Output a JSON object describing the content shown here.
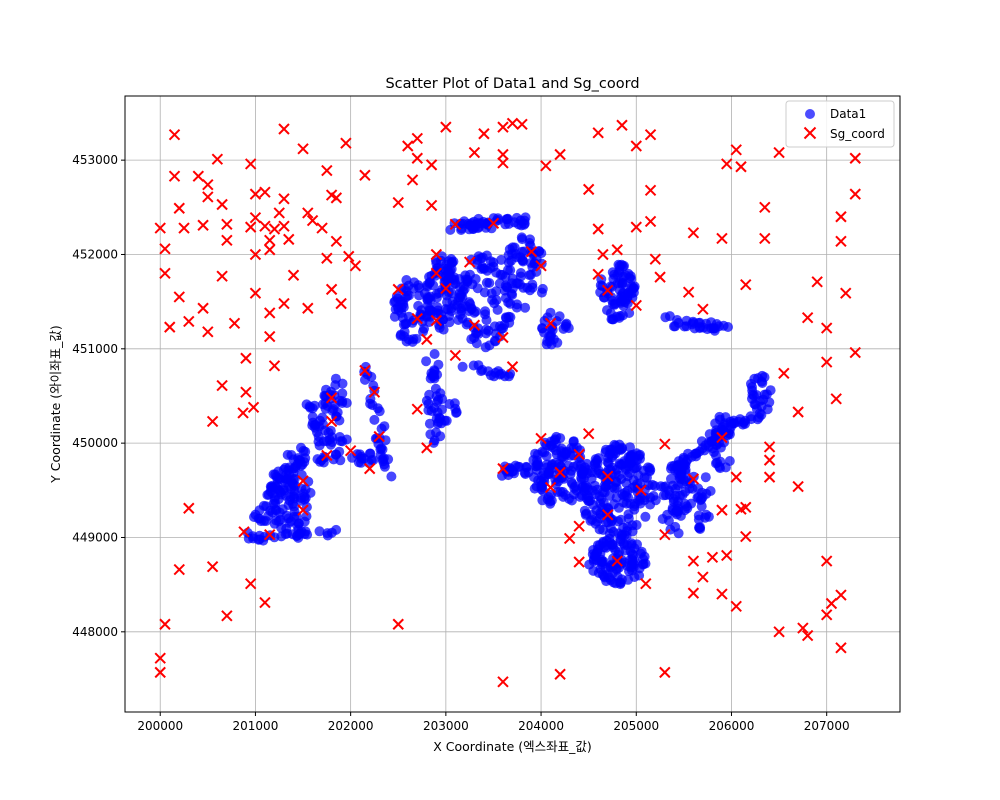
{
  "chart_data": {
    "type": "scatter",
    "title": "Scatter Plot of Data1 and Sg_coord",
    "xlabel": "X Coordinate (엑스좌표_값)",
    "ylabel": "Y Coordinate (와이좌표_값)",
    "xlim": [
      199630,
      207770
    ],
    "ylim": [
      447150,
      453680
    ],
    "xticks": [
      200000,
      201000,
      202000,
      203000,
      204000,
      205000,
      206000,
      207000
    ],
    "yticks": [
      448000,
      449000,
      450000,
      451000,
      452000,
      453000
    ],
    "grid": true,
    "legend_position": "top-right",
    "colors": {
      "data1": "#0000ff",
      "sg": "#ff0000",
      "grid": "#b0b0b0"
    },
    "legend": [
      "Data1",
      "Sg_coord"
    ],
    "series": [
      {
        "name": "Data1",
        "marker": "circle",
        "clusters": [
          {
            "shape": "line",
            "from": [
              200950,
              449000
            ],
            "to": [
              201850,
              449050
            ],
            "spread": 40,
            "n": 25
          },
          {
            "shape": "line",
            "from": [
              200950,
              449000
            ],
            "to": [
              201500,
              449900
            ],
            "spread": 80,
            "n": 40
          },
          {
            "shape": "blob",
            "cx": 201350,
            "cy": 449400,
            "rx": 250,
            "ry": 350,
            "n": 80
          },
          {
            "shape": "line",
            "from": [
              201350,
              449850
            ],
            "to": [
              202300,
              449850
            ],
            "spread": 60,
            "n": 30
          },
          {
            "shape": "line",
            "from": [
              201550,
              450500
            ],
            "to": [
              201750,
              449850
            ],
            "spread": 50,
            "n": 20
          },
          {
            "shape": "blob",
            "cx": 201850,
            "cy": 450300,
            "rx": 150,
            "ry": 400,
            "n": 40
          },
          {
            "shape": "line",
            "from": [
              202150,
              450800
            ],
            "to": [
              202400,
              449700
            ],
            "spread": 60,
            "n": 30
          },
          {
            "shape": "blob",
            "cx": 202650,
            "cy": 451400,
            "rx": 200,
            "ry": 350,
            "n": 60
          },
          {
            "shape": "blob",
            "cx": 203000,
            "cy": 451600,
            "rx": 200,
            "ry": 400,
            "n": 90
          },
          {
            "shape": "line",
            "from": [
              202850,
              451000
            ],
            "to": [
              202900,
              450000
            ],
            "spread": 80,
            "n": 30
          },
          {
            "shape": "blob",
            "cx": 203000,
            "cy": 450350,
            "rx": 150,
            "ry": 150,
            "n": 15
          },
          {
            "shape": "line",
            "from": [
              203050,
              452300
            ],
            "to": [
              203800,
              452350
            ],
            "spread": 60,
            "n": 50
          },
          {
            "shape": "blob",
            "cx": 203400,
            "cy": 451500,
            "rx": 300,
            "ry": 500,
            "n": 90
          },
          {
            "shape": "blob",
            "cx": 203800,
            "cy": 451800,
            "rx": 250,
            "ry": 400,
            "n": 60
          },
          {
            "shape": "blob",
            "cx": 204150,
            "cy": 451200,
            "rx": 150,
            "ry": 200,
            "n": 25
          },
          {
            "shape": "line",
            "from": [
              203200,
              450800
            ],
            "to": [
              203700,
              450700
            ],
            "spread": 50,
            "n": 15
          },
          {
            "shape": "blob",
            "cx": 204800,
            "cy": 451600,
            "rx": 200,
            "ry": 300,
            "n": 70
          },
          {
            "shape": "line",
            "from": [
              205300,
              451300
            ],
            "to": [
              206000,
              451200
            ],
            "spread": 50,
            "n": 30
          },
          {
            "shape": "blob",
            "cx": 206300,
            "cy": 450500,
            "rx": 120,
            "ry": 250,
            "n": 25
          },
          {
            "shape": "blob",
            "cx": 204200,
            "cy": 449700,
            "rx": 300,
            "ry": 400,
            "n": 120
          },
          {
            "shape": "blob",
            "cx": 204800,
            "cy": 449500,
            "rx": 400,
            "ry": 500,
            "n": 200
          },
          {
            "shape": "blob",
            "cx": 204800,
            "cy": 448750,
            "rx": 300,
            "ry": 250,
            "n": 100
          },
          {
            "shape": "line",
            "from": [
              203600,
              449700
            ],
            "to": [
              204000,
              449750
            ],
            "spread": 60,
            "n": 25
          },
          {
            "shape": "blob",
            "cx": 205500,
            "cy": 449400,
            "rx": 300,
            "ry": 400,
            "n": 80
          },
          {
            "shape": "line",
            "from": [
              205400,
              449700
            ],
            "to": [
              206000,
              450200
            ],
            "spread": 60,
            "n": 40
          },
          {
            "shape": "blob",
            "cx": 205900,
            "cy": 450000,
            "rx": 120,
            "ry": 300,
            "n": 30
          },
          {
            "shape": "line",
            "from": [
              206000,
              450200
            ],
            "to": [
              206300,
              450300
            ],
            "spread": 40,
            "n": 15
          }
        ]
      },
      {
        "name": "Sg_coord",
        "marker": "x",
        "points": [
          [
            200000,
            452280
          ],
          [
            200050,
            452060
          ],
          [
            200050,
            451800
          ],
          [
            200000,
            447720
          ],
          [
            200000,
            447570
          ],
          [
            200050,
            448080
          ],
          [
            200150,
            453270
          ],
          [
            200150,
            452830
          ],
          [
            200200,
            452490
          ],
          [
            200250,
            452280
          ],
          [
            200200,
            451550
          ],
          [
            200100,
            451230
          ],
          [
            200300,
            451290
          ],
          [
            200400,
            452830
          ],
          [
            200500,
            452740
          ],
          [
            200500,
            452610
          ],
          [
            200450,
            452310
          ],
          [
            200450,
            451430
          ],
          [
            200500,
            451180
          ],
          [
            200600,
            453010
          ],
          [
            200650,
            452530
          ],
          [
            200700,
            452320
          ],
          [
            200700,
            452150
          ],
          [
            200650,
            451770
          ],
          [
            200780,
            451270
          ],
          [
            200650,
            450610
          ],
          [
            200550,
            450230
          ],
          [
            200200,
            448660
          ],
          [
            200300,
            449310
          ],
          [
            200550,
            448690
          ],
          [
            200700,
            448170
          ],
          [
            200950,
            452960
          ],
          [
            201000,
            452640
          ],
          [
            201100,
            452660
          ],
          [
            200950,
            452290
          ],
          [
            201000,
            452390
          ],
          [
            201000,
            452000
          ],
          [
            201100,
            452300
          ],
          [
            201200,
            452270
          ],
          [
            201150,
            452150
          ],
          [
            201150,
            452050
          ],
          [
            201000,
            451590
          ],
          [
            201150,
            451380
          ],
          [
            201150,
            451130
          ],
          [
            201200,
            450820
          ],
          [
            200900,
            450900
          ],
          [
            200900,
            450540
          ],
          [
            200980,
            450380
          ],
          [
            200870,
            450320
          ],
          [
            200880,
            449060
          ],
          [
            200950,
            448510
          ],
          [
            201100,
            448310
          ],
          [
            201150,
            449030
          ],
          [
            201300,
            453330
          ],
          [
            201300,
            452590
          ],
          [
            201300,
            452300
          ],
          [
            201350,
            452160
          ],
          [
            201250,
            452440
          ],
          [
            201400,
            451780
          ],
          [
            201300,
            451480
          ],
          [
            201550,
            452440
          ],
          [
            201600,
            452360
          ],
          [
            201500,
            453120
          ],
          [
            201550,
            451430
          ],
          [
            201700,
            452280
          ],
          [
            201750,
            451960
          ],
          [
            201750,
            452890
          ],
          [
            201800,
            452630
          ],
          [
            201850,
            452600
          ],
          [
            201850,
            452140
          ],
          [
            201950,
            453180
          ],
          [
            201980,
            451980
          ],
          [
            201800,
            451630
          ],
          [
            201900,
            451480
          ],
          [
            202050,
            451880
          ],
          [
            202150,
            452840
          ],
          [
            202150,
            450770
          ],
          [
            202250,
            450540
          ],
          [
            201800,
            450480
          ],
          [
            201800,
            450230
          ],
          [
            202000,
            449920
          ],
          [
            202200,
            449730
          ],
          [
            202300,
            450070
          ],
          [
            201750,
            449870
          ],
          [
            201500,
            449290
          ],
          [
            201500,
            449600
          ],
          [
            202500,
            452550
          ],
          [
            202600,
            453150
          ],
          [
            202700,
            453230
          ],
          [
            202700,
            453020
          ],
          [
            202650,
            452790
          ],
          [
            202850,
            452950
          ],
          [
            202850,
            452520
          ],
          [
            202500,
            451630
          ],
          [
            202500,
            448080
          ],
          [
            202700,
            451320
          ],
          [
            202700,
            450360
          ],
          [
            202900,
            452000
          ],
          [
            202900,
            451800
          ],
          [
            202900,
            451300
          ],
          [
            202800,
            451100
          ],
          [
            202800,
            449950
          ],
          [
            203000,
            453350
          ],
          [
            203100,
            452320
          ],
          [
            203000,
            451640
          ],
          [
            203100,
            450930
          ],
          [
            203250,
            451920
          ],
          [
            203300,
            451250
          ],
          [
            203300,
            453080
          ],
          [
            203400,
            453280
          ],
          [
            203600,
            453350
          ],
          [
            203500,
            452330
          ],
          [
            203600,
            451120
          ],
          [
            203700,
            450810
          ],
          [
            203600,
            449730
          ],
          [
            203800,
            453380
          ],
          [
            203600,
            453060
          ],
          [
            203700,
            453390
          ],
          [
            203600,
            452970
          ],
          [
            203900,
            452030
          ],
          [
            204000,
            451880
          ],
          [
            204100,
            451270
          ],
          [
            204000,
            450050
          ],
          [
            204100,
            449530
          ],
          [
            204200,
            449690
          ],
          [
            204050,
            452940
          ],
          [
            204200,
            453060
          ],
          [
            204300,
            448990
          ],
          [
            204400,
            449880
          ],
          [
            204400,
            449120
          ],
          [
            204400,
            448740
          ],
          [
            204500,
            452690
          ],
          [
            204600,
            453290
          ],
          [
            204600,
            452270
          ],
          [
            204650,
            452000
          ],
          [
            204600,
            451790
          ],
          [
            204700,
            451620
          ],
          [
            204500,
            450100
          ],
          [
            204700,
            449650
          ],
          [
            204700,
            449240
          ],
          [
            204800,
            448750
          ],
          [
            204850,
            453370
          ],
          [
            204800,
            452050
          ],
          [
            205000,
            453150
          ],
          [
            205000,
            452290
          ],
          [
            205000,
            451460
          ],
          [
            205050,
            449500
          ],
          [
            205100,
            448510
          ],
          [
            205150,
            453270
          ],
          [
            205150,
            452680
          ],
          [
            205150,
            452350
          ],
          [
            205200,
            451950
          ],
          [
            205250,
            451760
          ],
          [
            205300,
            449990
          ],
          [
            205300,
            449030
          ],
          [
            205300,
            447570
          ],
          [
            203600,
            447470
          ],
          [
            204200,
            447550
          ],
          [
            205600,
            452230
          ],
          [
            205550,
            451600
          ],
          [
            205700,
            451420
          ],
          [
            205600,
            449620
          ],
          [
            205600,
            448750
          ],
          [
            205600,
            448410
          ],
          [
            205700,
            448580
          ],
          [
            205800,
            448790
          ],
          [
            205950,
            452960
          ],
          [
            205900,
            452170
          ],
          [
            205900,
            449290
          ],
          [
            205900,
            448400
          ],
          [
            205950,
            448810
          ],
          [
            205900,
            450060
          ],
          [
            206050,
            453110
          ],
          [
            206100,
            452930
          ],
          [
            206150,
            451680
          ],
          [
            206050,
            449640
          ],
          [
            206100,
            449300
          ],
          [
            206150,
            449320
          ],
          [
            206150,
            449010
          ],
          [
            206050,
            448270
          ],
          [
            206350,
            452500
          ],
          [
            206350,
            452170
          ],
          [
            206500,
            453080
          ],
          [
            206550,
            450740
          ],
          [
            206400,
            449960
          ],
          [
            206400,
            449820
          ],
          [
            206400,
            449640
          ],
          [
            206500,
            448000
          ],
          [
            206700,
            449540
          ],
          [
            206700,
            450330
          ],
          [
            206800,
            451330
          ],
          [
            206900,
            451710
          ],
          [
            206750,
            448040
          ],
          [
            206800,
            447960
          ],
          [
            207000,
            451220
          ],
          [
            207000,
            450860
          ],
          [
            207000,
            448750
          ],
          [
            207000,
            448180
          ],
          [
            207050,
            448300
          ],
          [
            207100,
            450470
          ],
          [
            207150,
            452400
          ],
          [
            207150,
            452140
          ],
          [
            207200,
            451590
          ],
          [
            207150,
            448390
          ],
          [
            207150,
            447830
          ],
          [
            207300,
            453020
          ],
          [
            207300,
            452640
          ],
          [
            207300,
            450960
          ]
        ]
      }
    ]
  }
}
